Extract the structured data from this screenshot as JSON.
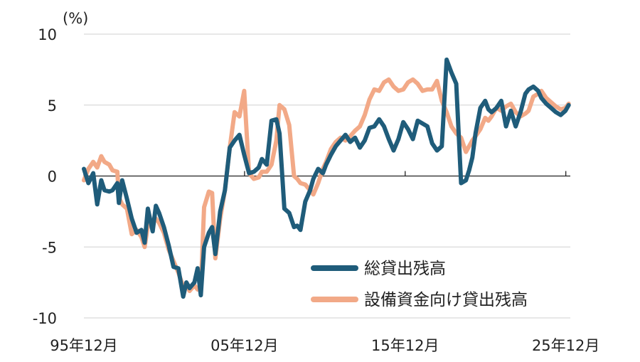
{
  "chart_data": {
    "type": "line",
    "unit_label": "(%)",
    "ylim": [
      -10,
      10
    ],
    "yticks": [
      10,
      5,
      0,
      -5,
      -10
    ],
    "ytick_labels": [
      "10",
      "5",
      "0",
      "-5",
      "-10"
    ],
    "xlim": [
      1995.92,
      2026.2
    ],
    "xticks": [
      1995.92,
      2005.92,
      2015.92,
      2025.92
    ],
    "xtick_labels": [
      "95年12月",
      "05年12月",
      "15年12月",
      "25年12月"
    ],
    "grid": true,
    "legend_position": "bottom-right",
    "series": [
      {
        "name": "総貸出残高",
        "color": "#1f5c7a",
        "x": [
          1995.92,
          1996.2,
          1996.5,
          1996.75,
          1997.0,
          1997.2,
          1997.5,
          1997.7,
          1998.0,
          1998.1,
          1998.3,
          1998.6,
          1998.9,
          1999.2,
          1999.5,
          1999.7,
          1999.9,
          2000.2,
          2000.4,
          2000.6,
          2000.9,
          2001.2,
          2001.5,
          2001.8,
          2002.1,
          2002.3,
          2002.5,
          2002.8,
          2003.0,
          2003.2,
          2003.4,
          2003.7,
          2003.9,
          2004.1,
          2004.4,
          2004.7,
          2005.0,
          2005.3,
          2005.6,
          2005.9,
          2006.2,
          2006.5,
          2006.8,
          2007.0,
          2007.3,
          2007.6,
          2007.9,
          2008.1,
          2008.4,
          2008.7,
          2009.0,
          2009.2,
          2009.4,
          2009.7,
          2010.0,
          2010.2,
          2010.5,
          2010.8,
          2011.0,
          2011.3,
          2011.6,
          2011.9,
          2012.2,
          2012.5,
          2012.8,
          2013.1,
          2013.4,
          2013.7,
          2014.0,
          2014.3,
          2014.6,
          2014.9,
          2015.2,
          2015.5,
          2015.8,
          2016.1,
          2016.4,
          2016.7,
          2017.0,
          2017.3,
          2017.6,
          2017.9,
          2018.2,
          2018.5,
          2018.8,
          2019.1,
          2019.4,
          2019.7,
          2019.9,
          2020.1,
          2020.3,
          2020.6,
          2020.9,
          2021.1,
          2021.3,
          2021.6,
          2021.9,
          2022.2,
          2022.5,
          2022.8,
          2023.1,
          2023.4,
          2023.6,
          2023.9,
          2024.2,
          2024.4,
          2024.7,
          2025.0,
          2025.3,
          2025.6,
          2025.9,
          2026.1
        ],
        "values": [
          0.5,
          -0.5,
          0.2,
          -2.0,
          -0.3,
          -1.0,
          -1.1,
          -1.0,
          -0.5,
          -1.9,
          -0.3,
          -1.6,
          -3.0,
          -4.0,
          -3.8,
          -4.7,
          -2.3,
          -3.9,
          -2.1,
          -2.6,
          -3.6,
          -4.9,
          -6.4,
          -6.5,
          -8.5,
          -7.5,
          -7.9,
          -7.5,
          -6.5,
          -8.4,
          -5.0,
          -4.0,
          -3.6,
          -5.5,
          -2.5,
          -1.0,
          2.0,
          2.5,
          2.9,
          1.5,
          0.2,
          0.3,
          0.6,
          1.2,
          0.8,
          3.9,
          4.0,
          3.0,
          -2.3,
          -2.6,
          -3.6,
          -3.5,
          -3.8,
          -1.8,
          -1.0,
          -0.2,
          0.5,
          0.2,
          0.8,
          1.5,
          2.1,
          2.5,
          2.9,
          2.4,
          2.7,
          2.0,
          2.5,
          3.4,
          3.5,
          4.0,
          3.5,
          2.6,
          1.8,
          2.6,
          3.8,
          3.3,
          2.6,
          3.9,
          3.7,
          3.5,
          2.3,
          1.8,
          2.1,
          8.2,
          7.3,
          6.5,
          -0.5,
          -0.3,
          0.4,
          1.3,
          3.0,
          4.8,
          5.3,
          4.7,
          4.5,
          4.8,
          5.3,
          3.5,
          4.6,
          3.5,
          4.5,
          5.8,
          6.1,
          6.3,
          6.0,
          5.5,
          5.1,
          4.8,
          4.5,
          4.3,
          4.6,
          5.0
        ]
      },
      {
        "name": "設備資金向け貸出残高",
        "color": "#f2a987",
        "x": [
          1995.92,
          1996.2,
          1996.5,
          1996.75,
          1997.0,
          1997.2,
          1997.5,
          1997.7,
          1998.0,
          1998.1,
          1998.3,
          1998.6,
          1998.9,
          1999.2,
          1999.5,
          1999.7,
          1999.9,
          2000.2,
          2000.4,
          2000.6,
          2000.9,
          2001.2,
          2001.5,
          2001.8,
          2002.1,
          2002.3,
          2002.5,
          2002.8,
          2003.0,
          2003.2,
          2003.4,
          2003.7,
          2003.9,
          2004.1,
          2004.4,
          2004.7,
          2005.0,
          2005.3,
          2005.6,
          2005.9,
          2006.2,
          2006.5,
          2006.8,
          2007.0,
          2007.3,
          2007.6,
          2007.9,
          2008.1,
          2008.4,
          2008.7,
          2009.0,
          2009.2,
          2009.4,
          2009.7,
          2010.0,
          2010.2,
          2010.5,
          2010.8,
          2011.0,
          2011.3,
          2011.6,
          2011.9,
          2012.2,
          2012.5,
          2012.8,
          2013.1,
          2013.4,
          2013.7,
          2014.0,
          2014.3,
          2014.6,
          2014.9,
          2015.2,
          2015.5,
          2015.8,
          2016.1,
          2016.4,
          2016.7,
          2017.0,
          2017.3,
          2017.6,
          2017.9,
          2018.2,
          2018.5,
          2018.8,
          2019.1,
          2019.4,
          2019.7,
          2019.9,
          2020.1,
          2020.3,
          2020.6,
          2020.9,
          2021.1,
          2021.3,
          2021.6,
          2021.9,
          2022.2,
          2022.5,
          2022.8,
          2023.1,
          2023.4,
          2023.6,
          2023.9,
          2024.2,
          2024.4,
          2024.7,
          2025.0,
          2025.3,
          2025.6,
          2025.9,
          2026.1
        ],
        "values": [
          -0.3,
          0.5,
          1.0,
          0.6,
          1.4,
          1.0,
          0.8,
          0.4,
          0.3,
          -1.5,
          -2.0,
          -2.3,
          -4.1,
          -3.8,
          -4.3,
          -5.0,
          -3.5,
          -3.2,
          -3.0,
          -3.3,
          -4.0,
          -5.2,
          -6.0,
          -6.8,
          -7.8,
          -7.6,
          -8.1,
          -7.7,
          -8.0,
          -8.0,
          -2.2,
          -1.1,
          -1.2,
          -5.8,
          -3.0,
          -1.0,
          2.0,
          4.5,
          4.2,
          6.0,
          0.2,
          -0.2,
          -0.1,
          0.3,
          0.3,
          0.8,
          2.5,
          5.0,
          4.7,
          3.6,
          0.0,
          -0.2,
          -0.5,
          -0.6,
          -1.0,
          -1.3,
          -0.5,
          0.5,
          1.0,
          1.9,
          2.4,
          2.7,
          2.5,
          2.8,
          3.2,
          3.5,
          4.3,
          5.4,
          6.1,
          6.0,
          6.6,
          6.8,
          6.3,
          6.0,
          6.1,
          6.6,
          6.8,
          6.5,
          6.0,
          6.1,
          6.1,
          6.7,
          5.3,
          4.5,
          3.5,
          3.0,
          2.7,
          1.7,
          2.1,
          2.5,
          2.8,
          3.3,
          4.1,
          3.9,
          4.2,
          4.8,
          4.6,
          4.9,
          5.1,
          4.5,
          4.2,
          4.4,
          4.6,
          5.6,
          5.8,
          6.0,
          5.5,
          5.2,
          4.9,
          4.7,
          4.8,
          5.1
        ]
      }
    ]
  }
}
